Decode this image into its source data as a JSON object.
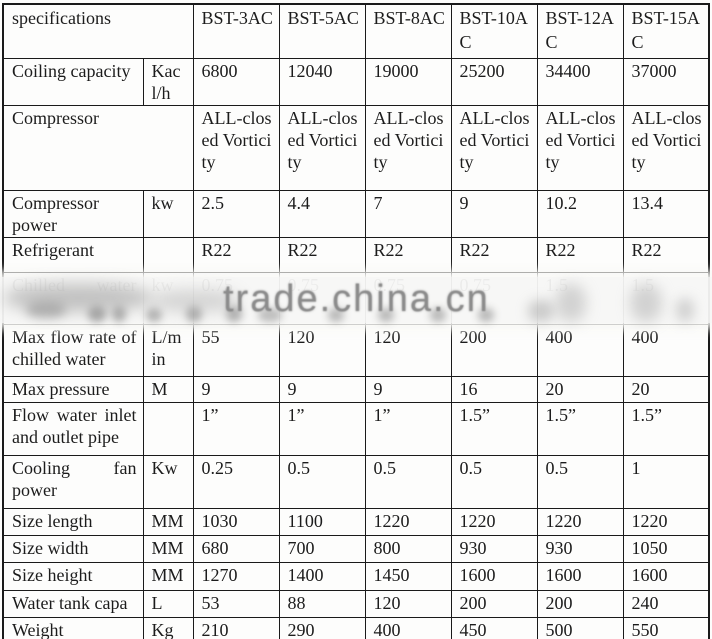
{
  "watermark": {
    "text": "trade.china.cn",
    "color": "#8c8c8c"
  },
  "table": {
    "header": {
      "spec_label": "specifications",
      "models": [
        "BST-3AC",
        "BST-5AC",
        "BST-8AC",
        "BST-10AC",
        "BST-12AC",
        "BST-15AC"
      ]
    },
    "rows": [
      {
        "label": "Coiling capacity",
        "unit": "Kacl/h",
        "values": [
          "6800",
          "12040",
          "19000",
          "25200",
          "34400",
          "37000"
        ]
      },
      {
        "label": "Compressor",
        "unit": null,
        "label_spans_unit": true,
        "values": [
          "ALL-closed Vorticity",
          "ALL-closed Vorticity",
          "ALL-closed Vorticity",
          "ALL-closed Vorticity",
          "ALL-closed Vorticity",
          "ALL-closed Vorticity"
        ]
      },
      {
        "label": "Compressor power",
        "unit": "kw",
        "values": [
          "2.5",
          "4.4",
          "7",
          "9",
          "10.2",
          "13.4"
        ]
      },
      {
        "label": "Refrigerant",
        "unit": "",
        "values": [
          "R22",
          "R22",
          "R22",
          "R22",
          "R22",
          "R22"
        ]
      },
      {
        "label": "Chilled water",
        "unit": "kw",
        "values": [
          "0.75",
          "0.75",
          "0.75",
          "0.75",
          "1.5",
          "1.5"
        ]
      },
      {
        "label": "Max flow rate of chilled water",
        "unit": "L/min",
        "values": [
          "55",
          "120",
          "120",
          "200",
          "400",
          "400"
        ]
      },
      {
        "label": "Max pressure",
        "unit": "M",
        "values": [
          "9",
          "9",
          "9",
          "16",
          "20",
          "20"
        ]
      },
      {
        "label": "Flow water inlet and outlet pipe",
        "unit": "",
        "values": [
          "1”",
          "1”",
          "1”",
          "1.5”",
          "1.5”",
          "1.5”"
        ]
      },
      {
        "label": "Cooling fan power",
        "unit": "Kw",
        "values": [
          "0.25",
          "0.5",
          "0.5",
          "0.5",
          "0.5",
          "1"
        ]
      },
      {
        "label": "Size length",
        "unit": "MM",
        "values": [
          "1030",
          "1100",
          "1220",
          "1220",
          "1220",
          "1220"
        ]
      },
      {
        "label": "Size width",
        "unit": "MM",
        "values": [
          "680",
          "700",
          "800",
          "930",
          "930",
          "1050"
        ]
      },
      {
        "label": "Size height",
        "unit": "MM",
        "values": [
          "1270",
          "1400",
          "1450",
          "1600",
          "1600",
          "1600"
        ]
      },
      {
        "label": "Water tank capa",
        "unit": "L",
        "values": [
          "53",
          "88",
          "120",
          "200",
          "200",
          "240"
        ]
      },
      {
        "label": "Weight",
        "unit": "Kg",
        "values": [
          "210",
          "290",
          "400",
          "450",
          "500",
          "550"
        ]
      }
    ]
  }
}
